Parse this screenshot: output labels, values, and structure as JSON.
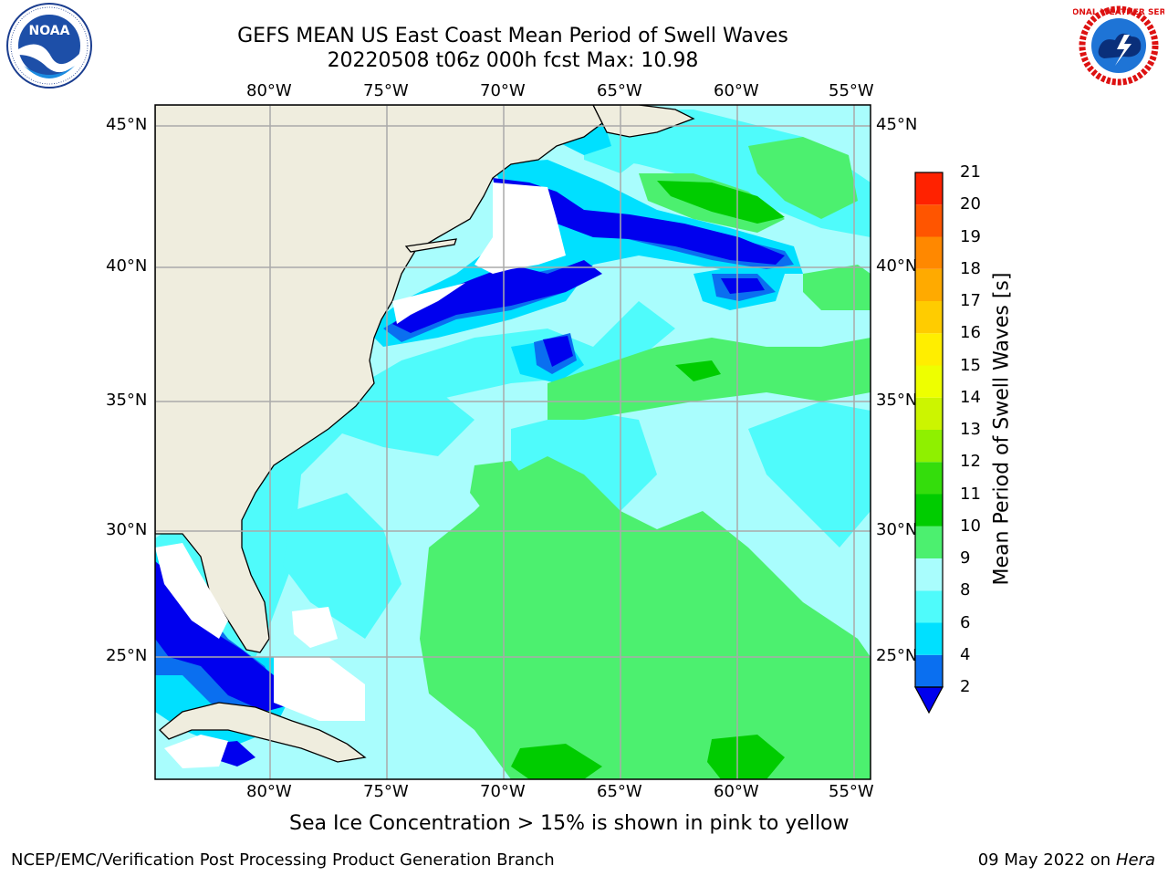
{
  "header": {
    "title_line1": "GEFS MEAN US East Coast Mean Period of Swell Waves",
    "title_line2": "20220508 t06z 000h fcst   Max: 10.98"
  },
  "map": {
    "lon_ticks": [
      "80°W",
      "75°W",
      "70°W",
      "65°W",
      "60°W",
      "55°W"
    ],
    "lat_ticks": [
      "45°N",
      "40°N",
      "35°N",
      "30°N",
      "25°N"
    ],
    "land_color": "#efedde",
    "grid_color": "#aaaaaa",
    "ocean_base_color": "#a9fdfd"
  },
  "colorbar": {
    "label": "Mean Period of Swell Waves [s]",
    "ticks": [
      "2",
      "4",
      "6",
      "8",
      "9",
      "10",
      "11",
      "12",
      "13",
      "14",
      "15",
      "16",
      "17",
      "18",
      "19",
      "20",
      "21"
    ],
    "colors": [
      "#0a6ff0",
      "#00e0ff",
      "#4ffbfb",
      "#a9fdfd",
      "#4cf06f",
      "#00cc00",
      "#34dd0c",
      "#8ff000",
      "#ccf500",
      "#eeff00",
      "#ffee00",
      "#ffcc00",
      "#ffaa00",
      "#ff8800",
      "#ff5500",
      "#ff2200"
    ],
    "under_color": "#0000ee"
  },
  "caption": "Sea Ice Concentration > 15% is shown in pink to yellow",
  "footer": {
    "left": "NCEP/EMC/Verification Post Processing Product Generation Branch",
    "right_prefix": "09 May 2022 on",
    "right_machine": "Hera"
  },
  "logos": {
    "noaa_text": "NOAA",
    "nws_text": "NATIONAL WEATHER SERVICE"
  }
}
